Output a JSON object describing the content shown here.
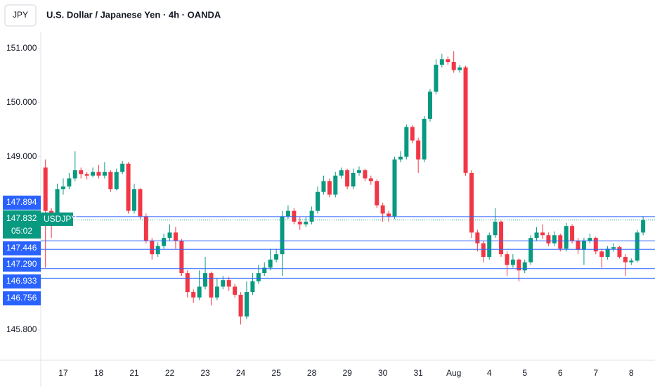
{
  "chart_data": {
    "type": "candlestick",
    "currency": "JPY",
    "title": "U.S. Dollar / Japanese Yen · 4h · OANDA",
    "up_color": "#089981",
    "down_color": "#f23645",
    "level_color": "#2962ff",
    "categories": [
      null,
      null,
      null,
      "17",
      null,
      null,
      null,
      null,
      null,
      "18",
      null,
      null,
      null,
      null,
      null,
      "21",
      null,
      null,
      null,
      null,
      null,
      "22",
      null,
      null,
      null,
      null,
      null,
      "23",
      null,
      null,
      null,
      null,
      null,
      "24",
      null,
      null,
      null,
      null,
      null,
      "25",
      null,
      null,
      null,
      null,
      null,
      "28",
      null,
      null,
      null,
      null,
      null,
      "29",
      null,
      null,
      null,
      null,
      null,
      "30",
      null,
      null,
      null,
      null,
      null,
      "31",
      null,
      null,
      null,
      null,
      null,
      "Aug",
      null,
      null,
      null,
      null,
      null,
      "4",
      null,
      null,
      null,
      null,
      null,
      "5",
      null,
      null,
      null,
      null,
      null,
      "6",
      null,
      null,
      null,
      null,
      null,
      "7",
      null,
      null,
      null,
      null,
      null,
      "8",
      null,
      null
    ],
    "open": [
      148.8,
      148.0,
      147.85,
      148.4,
      148.45,
      148.6,
      148.75,
      148.68,
      148.65,
      148.72,
      148.65,
      148.72,
      148.4,
      148.72,
      148.87,
      148.0,
      148.4,
      147.9,
      147.45,
      147.2,
      147.35,
      147.5,
      147.6,
      147.45,
      146.85,
      146.5,
      146.4,
      146.6,
      146.85,
      146.4,
      146.6,
      146.72,
      146.6,
      146.45,
      146.05,
      146.5,
      146.7,
      146.85,
      146.95,
      147.1,
      147.2,
      147.9,
      148.0,
      147.8,
      147.75,
      147.8,
      148.0,
      148.35,
      148.55,
      148.3,
      148.65,
      148.75,
      148.45,
      148.7,
      148.75,
      148.6,
      148.55,
      148.1,
      147.95,
      147.9,
      148.95,
      149.0,
      149.55,
      149.3,
      148.95,
      149.7,
      150.2,
      150.7,
      150.8,
      150.75,
      150.6,
      150.65,
      148.7,
      147.6,
      147.4,
      147.15,
      147.55,
      147.8,
      147.2,
      147.0,
      147.1,
      146.9,
      147.05,
      147.5,
      147.6,
      147.55,
      147.4,
      147.55,
      147.3,
      147.72,
      147.45,
      147.28,
      147.45,
      147.5,
      147.25,
      147.15,
      147.3,
      147.33,
      147.15,
      147.05,
      147.08,
      147.6
    ],
    "high": [
      148.95,
      148.05,
      148.5,
      148.6,
      148.7,
      149.1,
      148.8,
      148.72,
      148.8,
      148.85,
      148.9,
      148.75,
      148.78,
      148.92,
      148.9,
      148.5,
      148.42,
      147.95,
      147.5,
      147.42,
      147.58,
      147.75,
      147.7,
      147.48,
      146.9,
      146.55,
      146.9,
      147.15,
      146.88,
      146.75,
      146.8,
      146.78,
      146.65,
      146.5,
      146.7,
      146.85,
      147.0,
      147.05,
      147.3,
      147.3,
      148.0,
      148.1,
      148.05,
      147.88,
      147.88,
      148.08,
      148.45,
      148.65,
      148.6,
      148.72,
      148.8,
      148.78,
      148.78,
      148.82,
      148.78,
      148.65,
      148.58,
      148.15,
      148.0,
      149.0,
      149.1,
      149.6,
      149.58,
      149.35,
      149.75,
      150.25,
      150.8,
      150.9,
      150.85,
      150.95,
      150.7,
      150.68,
      148.75,
      147.65,
      147.45,
      147.6,
      148.05,
      147.82,
      147.25,
      147.2,
      147.12,
      147.1,
      147.55,
      147.7,
      147.75,
      147.6,
      147.62,
      147.58,
      147.78,
      147.75,
      147.5,
      147.5,
      147.58,
      147.52,
      147.3,
      147.35,
      147.4,
      147.35,
      147.2,
      147.12,
      147.65,
      147.9
    ],
    "low": [
      146.95,
      147.5,
      147.8,
      148.3,
      148.4,
      148.55,
      148.6,
      148.58,
      148.62,
      148.6,
      148.6,
      148.35,
      148.38,
      148.68,
      147.95,
      147.95,
      147.85,
      147.4,
      147.1,
      147.15,
      147.3,
      147.45,
      147.3,
      146.8,
      146.4,
      146.3,
      146.35,
      146.55,
      146.25,
      146.35,
      146.55,
      146.52,
      146.4,
      145.9,
      146.0,
      146.45,
      146.65,
      146.8,
      146.9,
      147.05,
      146.8,
      147.85,
      147.75,
      147.65,
      147.7,
      147.75,
      147.95,
      148.3,
      148.25,
      148.25,
      148.6,
      148.4,
      148.4,
      148.65,
      148.55,
      148.48,
      148.05,
      147.8,
      147.8,
      147.85,
      148.9,
      148.95,
      149.25,
      148.7,
      148.9,
      149.65,
      150.15,
      150.65,
      150.7,
      150.55,
      150.55,
      148.65,
      147.5,
      147.25,
      147.05,
      147.1,
      147.5,
      147.15,
      146.8,
      146.95,
      146.7,
      146.85,
      147.0,
      147.45,
      147.48,
      147.35,
      147.35,
      147.25,
      147.25,
      147.4,
      147.2,
      147.0,
      147.4,
      147.2,
      146.95,
      147.1,
      147.25,
      147.12,
      146.8,
      147.0,
      147.05,
      147.55
    ],
    "close": [
      148.0,
      147.85,
      148.4,
      148.45,
      148.6,
      148.75,
      148.68,
      148.65,
      148.72,
      148.65,
      148.72,
      148.4,
      148.72,
      148.87,
      148.0,
      148.4,
      147.9,
      147.45,
      147.2,
      147.35,
      147.5,
      147.6,
      147.45,
      146.85,
      146.5,
      146.4,
      146.6,
      146.85,
      146.4,
      146.6,
      146.72,
      146.6,
      146.45,
      146.05,
      146.5,
      146.7,
      146.85,
      146.95,
      147.1,
      147.2,
      147.9,
      148.0,
      147.8,
      147.75,
      147.8,
      148.0,
      148.35,
      148.55,
      148.3,
      148.65,
      148.75,
      148.45,
      148.7,
      148.75,
      148.6,
      148.55,
      148.1,
      147.95,
      147.9,
      148.95,
      149.0,
      149.55,
      149.3,
      148.95,
      149.7,
      150.2,
      150.7,
      150.8,
      150.75,
      150.6,
      150.65,
      148.7,
      147.6,
      147.4,
      147.15,
      147.55,
      147.8,
      147.2,
      147.0,
      147.1,
      146.9,
      147.05,
      147.5,
      147.6,
      147.55,
      147.4,
      147.55,
      147.3,
      147.72,
      147.45,
      147.28,
      147.45,
      147.5,
      147.25,
      147.15,
      147.3,
      147.33,
      147.15,
      147.05,
      147.08,
      147.6,
      147.83
    ],
    "ylim": [
      145.24,
      151.31
    ],
    "yticks": [
      {
        "value": 145.8,
        "label": "145.800"
      },
      {
        "value": 149,
        "label": "149.000"
      },
      {
        "value": 150,
        "label": "150.000"
      },
      {
        "value": 151,
        "label": "151.000"
      }
    ],
    "levels": [
      {
        "value": 147.894,
        "label": "147.894"
      },
      {
        "value": 147.446,
        "label": "147.446"
      },
      {
        "value": 147.29,
        "label": "147.290"
      },
      {
        "value": 146.933,
        "label": "146.933"
      },
      {
        "value": 146.756,
        "label": "146.756"
      }
    ],
    "current": {
      "symbol": "USDJPY",
      "value": 147.832,
      "countdown": "05:02"
    }
  }
}
